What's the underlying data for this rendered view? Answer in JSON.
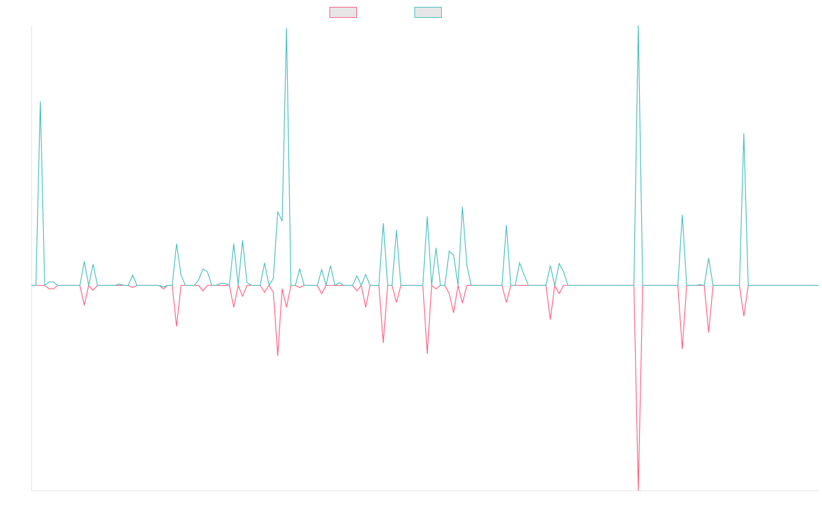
{
  "chart_data": {
    "type": "line",
    "categories": [
      null,
      null,
      null,
      null,
      null,
      null,
      null,
      null,
      null,
      null,
      null,
      null,
      null,
      null,
      null,
      null,
      null,
      null,
      null,
      null,
      null,
      null,
      null,
      null,
      null,
      null,
      null,
      null,
      null,
      null,
      null,
      null,
      null,
      null,
      null,
      null,
      null,
      null,
      null,
      null,
      null,
      null,
      null,
      null,
      null,
      null,
      null,
      null,
      null,
      null,
      null,
      null,
      null,
      null,
      null,
      null,
      null,
      null,
      null,
      null,
      null,
      null,
      null,
      null,
      null,
      null,
      null,
      null,
      null,
      null,
      null,
      null,
      null,
      null,
      null,
      null,
      null,
      null,
      null,
      null,
      null,
      null,
      null,
      null,
      null,
      null,
      null,
      null,
      null,
      null,
      null,
      null,
      null,
      null,
      null,
      null,
      null,
      null,
      null,
      null,
      null,
      null,
      null,
      null,
      null,
      null,
      null,
      null,
      null,
      null,
      null,
      null,
      null,
      null,
      null,
      null,
      null,
      null,
      null,
      null,
      null,
      null,
      null,
      null,
      null,
      null,
      null,
      null,
      null,
      null,
      null,
      null,
      null,
      null,
      null,
      null,
      null,
      null,
      null,
      null,
      null,
      null,
      null,
      null,
      null,
      null,
      null,
      null,
      null,
      null,
      null,
      null,
      null,
      null,
      null,
      null,
      null,
      null,
      null,
      null,
      null,
      null,
      null,
      null,
      null,
      null,
      null,
      null,
      null,
      null,
      null,
      null,
      null,
      null,
      null,
      null,
      null,
      null,
      null,
      null
    ],
    "series": [
      {
        "color": "#ff6384",
        "values": [
          0,
          0,
          0,
          0,
          -5,
          -5,
          0,
          0,
          0,
          0,
          0,
          0,
          -29,
          0,
          -7,
          0,
          0,
          0,
          0,
          0,
          0,
          0,
          0,
          -3,
          0,
          0,
          0,
          0,
          0,
          0,
          -5,
          0,
          0,
          -60,
          0,
          0,
          0,
          0,
          0,
          -8,
          0,
          0,
          0,
          0,
          0,
          0,
          -32,
          0,
          -16,
          0,
          0,
          0,
          0,
          -10,
          0,
          -10,
          -103,
          -5,
          -32,
          0,
          0,
          -3,
          0,
          0,
          0,
          0,
          -12,
          0,
          0,
          0,
          0,
          0,
          0,
          0,
          -8,
          0,
          -32,
          0,
          0,
          0,
          -84,
          0,
          0,
          -25,
          0,
          0,
          0,
          0,
          0,
          0,
          -100,
          0,
          -5,
          0,
          0,
          -12,
          -40,
          0,
          -26,
          0,
          0,
          0,
          0,
          0,
          0,
          0,
          0,
          0,
          -25,
          0,
          0,
          0,
          0,
          0,
          0,
          0,
          0,
          0,
          -50,
          0,
          -12,
          0,
          0,
          0,
          0,
          0,
          0,
          0,
          0,
          0,
          0,
          0,
          0,
          0,
          0,
          0,
          0,
          0,
          -300,
          0,
          0,
          0,
          0,
          0,
          0,
          0,
          0,
          0,
          -93,
          0,
          0,
          0,
          0,
          0,
          -69,
          0,
          0,
          0,
          0,
          0,
          0,
          0,
          -45,
          0,
          0,
          0,
          0,
          0,
          0,
          0,
          0,
          0,
          0,
          0,
          0,
          0,
          0,
          0,
          0,
          0
        ]
      },
      {
        "color": "#4bc0c0",
        "values": [
          0,
          0,
          269,
          0,
          5,
          5,
          0,
          0,
          0,
          0,
          0,
          0,
          35,
          0,
          31,
          0,
          0,
          0,
          0,
          0,
          2,
          0,
          0,
          15,
          0,
          0,
          0,
          0,
          0,
          0,
          -2,
          0,
          0,
          61,
          15,
          0,
          0,
          0,
          8,
          24,
          20,
          0,
          0,
          3,
          3,
          0,
          61,
          0,
          66,
          4,
          0,
          0,
          0,
          33,
          0,
          10,
          108,
          94,
          376,
          0,
          0,
          24,
          0,
          0,
          0,
          0,
          23,
          0,
          29,
          0,
          4,
          0,
          0,
          0,
          14,
          0,
          16,
          0,
          0,
          0,
          91,
          0,
          0,
          81,
          0,
          0,
          0,
          0,
          0,
          0,
          101,
          0,
          55,
          0,
          0,
          50,
          44,
          0,
          115,
          30,
          0,
          0,
          0,
          0,
          0,
          0,
          0,
          0,
          88,
          0,
          0,
          33,
          16,
          0,
          0,
          0,
          0,
          0,
          29,
          0,
          32,
          20,
          0,
          0,
          0,
          0,
          0,
          0,
          0,
          0,
          0,
          0,
          0,
          0,
          0,
          0,
          0,
          0,
          380,
          0,
          0,
          0,
          0,
          0,
          0,
          0,
          0,
          0,
          103,
          0,
          0,
          0,
          1,
          0,
          40,
          0,
          0,
          0,
          0,
          0,
          0,
          0,
          222,
          0,
          0,
          0,
          0,
          0,
          0,
          0,
          0,
          0,
          0,
          0,
          0,
          0,
          0,
          0,
          0,
          0
        ]
      }
    ],
    "ylim": [
      -300,
      380
    ]
  }
}
